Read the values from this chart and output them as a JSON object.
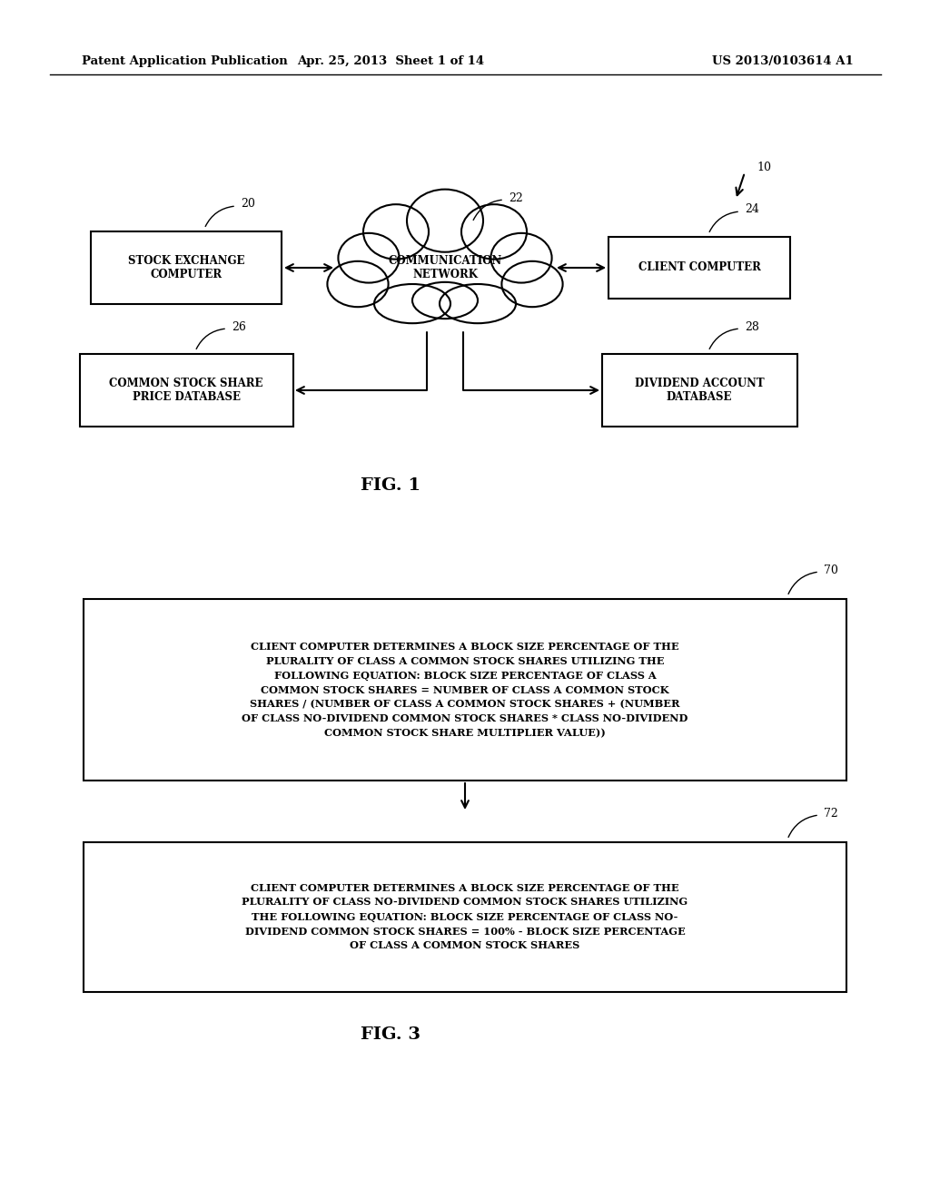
{
  "bg_color": "#ffffff",
  "header_left": "Patent Application Publication",
  "header_mid": "Apr. 25, 2013  Sheet 1 of 14",
  "header_right": "US 2013/0103614 A1",
  "fig1_label": "FIG. 1",
  "fig3_label": "FIG. 3",
  "box70_text": "CLIENT COMPUTER DETERMINES A BLOCK SIZE PERCENTAGE OF THE\nPLURALITY OF CLASS A COMMON STOCK SHARES UTILIZING THE\nFOLLOWING EQUATION: BLOCK SIZE PERCENTAGE OF CLASS A\nCOMMON STOCK SHARES = NUMBER OF CLASS A COMMON STOCK\nSHARES / (NUMBER OF CLASS A COMMON STOCK SHARES + (NUMBER\nOF CLASS NO-DIVIDEND COMMON STOCK SHARES * CLASS NO-DIVIDEND\nCOMMON STOCK SHARE MULTIPLIER VALUE))",
  "box72_text": "CLIENT COMPUTER DETERMINES A BLOCK SIZE PERCENTAGE OF THE\nPLURALITY OF CLASS NO-DIVIDEND COMMON STOCK SHARES UTILIZING\nTHE FOLLOWING EQUATION: BLOCK SIZE PERCENTAGE OF CLASS NO-\nDIVIDEND COMMON STOCK SHARES = 100% - BLOCK SIZE PERCENTAGE\nOF CLASS A COMMON STOCK SHARES"
}
